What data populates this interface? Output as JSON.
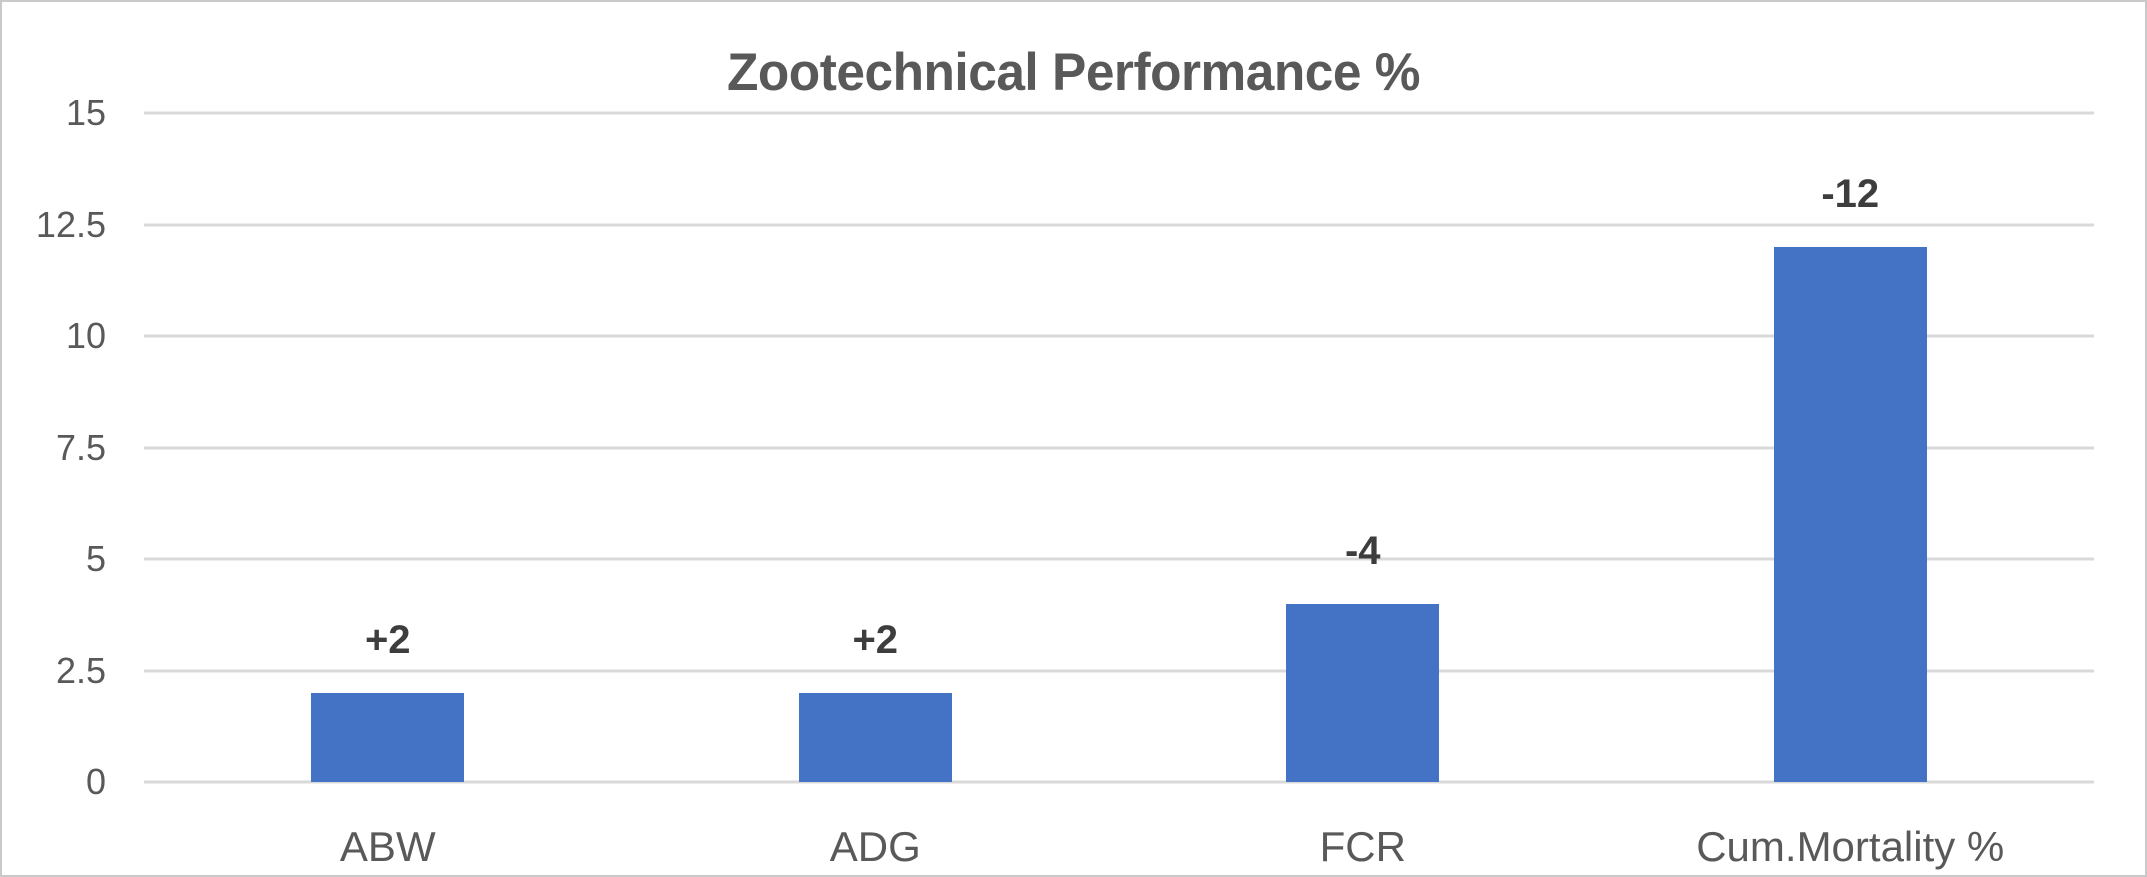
{
  "chart_data": {
    "type": "bar",
    "title": "Zootechnical Performance %",
    "categories": [
      "ABW",
      "ADG",
      "FCR",
      "Cum.Mortality %"
    ],
    "values": [
      2,
      2,
      4,
      12
    ],
    "data_labels": [
      "+2",
      "+2",
      "-4",
      "-12"
    ],
    "ylim": [
      0,
      15
    ],
    "yticks": [
      {
        "v": 0,
        "label": "0"
      },
      {
        "v": 2.5,
        "label": "2.5"
      },
      {
        "v": 5,
        "label": "5"
      },
      {
        "v": 7.5,
        "label": "7.5"
      },
      {
        "v": 10,
        "label": "10"
      },
      {
        "v": 12.5,
        "label": "12.5"
      },
      {
        "v": 15,
        "label": "15"
      }
    ],
    "grid": true,
    "legend": "none",
    "xlabel": "",
    "ylabel": "",
    "colors": {
      "bar": "#4472C4",
      "gridline": "#D9D9D9",
      "title": "#595959",
      "axis_labels": "#595959",
      "data_labels": "#3D3D3D",
      "border": "#C9C9C9"
    }
  }
}
